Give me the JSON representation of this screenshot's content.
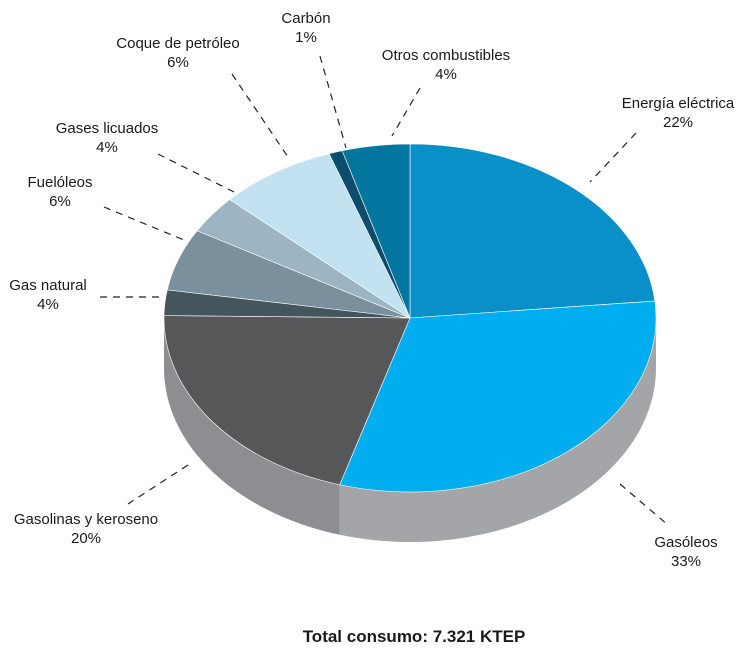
{
  "chart_data": {
    "type": "pie",
    "title": "",
    "total_text": "Total consumo: 7.321 KTEP",
    "slices": [
      {
        "name": "Energía eléctrica",
        "value": 22,
        "label": "22%",
        "color": "#0a90c8"
      },
      {
        "name": "Gasóleos",
        "value": 33,
        "label": "33%",
        "color": "#00aeef"
      },
      {
        "name": "Gasolinas y keroseno",
        "value": 20,
        "label": "20%",
        "color": "#555759"
      },
      {
        "name": "Gas natural",
        "value": 4,
        "label": "4%",
        "color": "#44555e"
      },
      {
        "name": "Fuelóleos",
        "value": 6,
        "label": "6%",
        "color": "#7a909c"
      },
      {
        "name": "Gases licuados",
        "value": 4,
        "label": "4%",
        "color": "#9db5c3"
      },
      {
        "name": "Coque de petróleo",
        "value": 6,
        "label": "6%",
        "color": "#c2e2f2"
      },
      {
        "name": "Carbón",
        "value": 1,
        "label": "1%",
        "color": "#0c4d6e"
      },
      {
        "name": "Otros combustibles",
        "value": 4,
        "label": "4%",
        "color": "#03769f"
      }
    ],
    "side_color": "#a3a5a8",
    "side_color_dark": "#8c8e91"
  }
}
